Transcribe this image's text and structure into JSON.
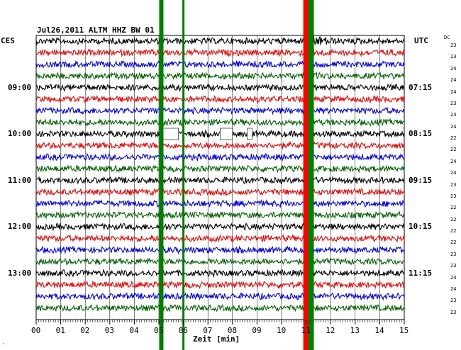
{
  "header": {
    "title": "Jul26,2011  ALTM HHZ BW 01",
    "left_tz": "CES",
    "right_tz": "UTC",
    "dc_label": "DC"
  },
  "x_axis": {
    "label": "Zeit [min]",
    "ticks": [
      "00",
      "01",
      "02",
      "03",
      "04",
      "05",
      "06",
      "07",
      "08",
      "09",
      "10",
      "11",
      "12",
      "13",
      "14",
      "15"
    ],
    "range": [
      0,
      15
    ]
  },
  "left_times": [
    "09:00",
    "10:00",
    "11:00",
    "12:00",
    "13:00"
  ],
  "right_times": [
    "07:15",
    "08:15",
    "09:15",
    "10:15",
    "11:15"
  ],
  "dc_values": [
    "23",
    "23",
    "24",
    "24",
    "24",
    "23",
    "23",
    "24",
    "22",
    "22",
    "24",
    "24",
    "23",
    "23",
    "22",
    "22",
    "22",
    "22",
    "23",
    "23",
    "24",
    "24",
    "23",
    "23"
  ],
  "corner_mark": "¸",
  "colors": {
    "trace_cycle": [
      "#000000",
      "#ff0000",
      "#0000ff",
      "#006600"
    ],
    "vertical_markers": "#008000",
    "event_marker": "#ff0000"
  },
  "chart_data": {
    "type": "line",
    "title": "Jul26,2011  ALTM HHZ BW 01",
    "xlabel": "Zeit [min]",
    "xlim": [
      0,
      15
    ],
    "trace_count": 24,
    "trace_minutes": 15,
    "vertical_markers_min": [
      5.1,
      6.0,
      11.2
    ],
    "event_marker_min": 11.0,
    "event_trace_start": 0,
    "gaps": [
      {
        "trace": 8,
        "from_min": 5.1,
        "to_min": 5.8
      },
      {
        "trace": 8,
        "from_min": 7.5,
        "to_min": 8.0
      },
      {
        "trace": 8,
        "from_min": 8.6,
        "to_min": 8.8
      }
    ]
  }
}
